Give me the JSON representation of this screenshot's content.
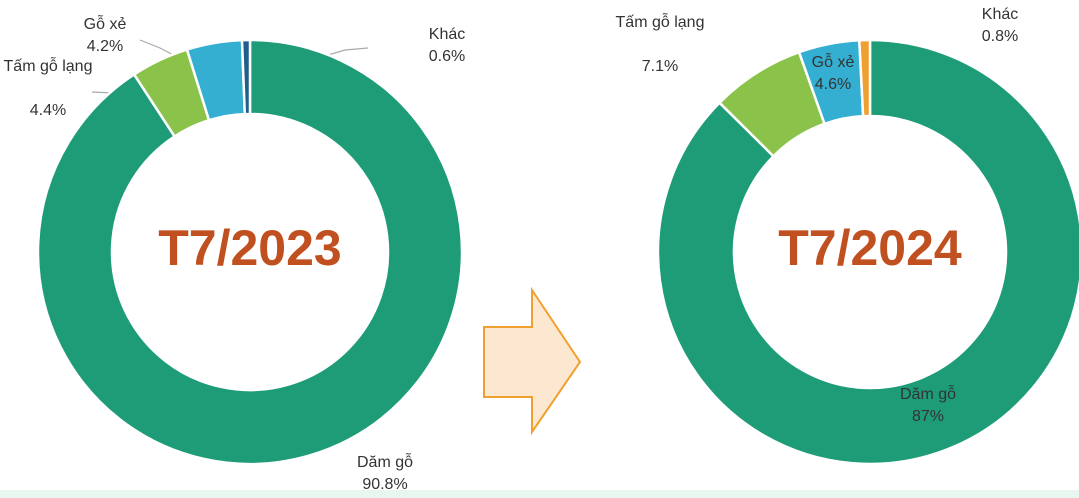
{
  "chart_data": [
    {
      "type": "donut",
      "center_label": "T7/2023",
      "categories": [
        "Dăm gỗ",
        "Tấm gỗ lạng",
        "Gỗ xẻ",
        "Khác"
      ],
      "values": [
        90.8,
        4.4,
        4.2,
        0.6
      ],
      "value_labels": [
        "90.8%",
        "4.4%",
        "4.2%",
        "0.6%"
      ],
      "colors": [
        "#1e9c78",
        "#8bc34a",
        "#34afd1",
        "#1f5f8b"
      ]
    },
    {
      "type": "donut",
      "center_label": "T7/2024",
      "categories": [
        "Dăm gỗ",
        "Tấm gỗ lạng",
        "Gỗ xẻ",
        "Khác"
      ],
      "values": [
        87,
        7.1,
        4.6,
        0.8
      ],
      "value_labels": [
        "87%",
        "7.1%",
        "4.6%",
        "0.8%"
      ],
      "colors": [
        "#1e9c78",
        "#8bc34a",
        "#34afd1",
        "#f0a030"
      ]
    }
  ]
}
